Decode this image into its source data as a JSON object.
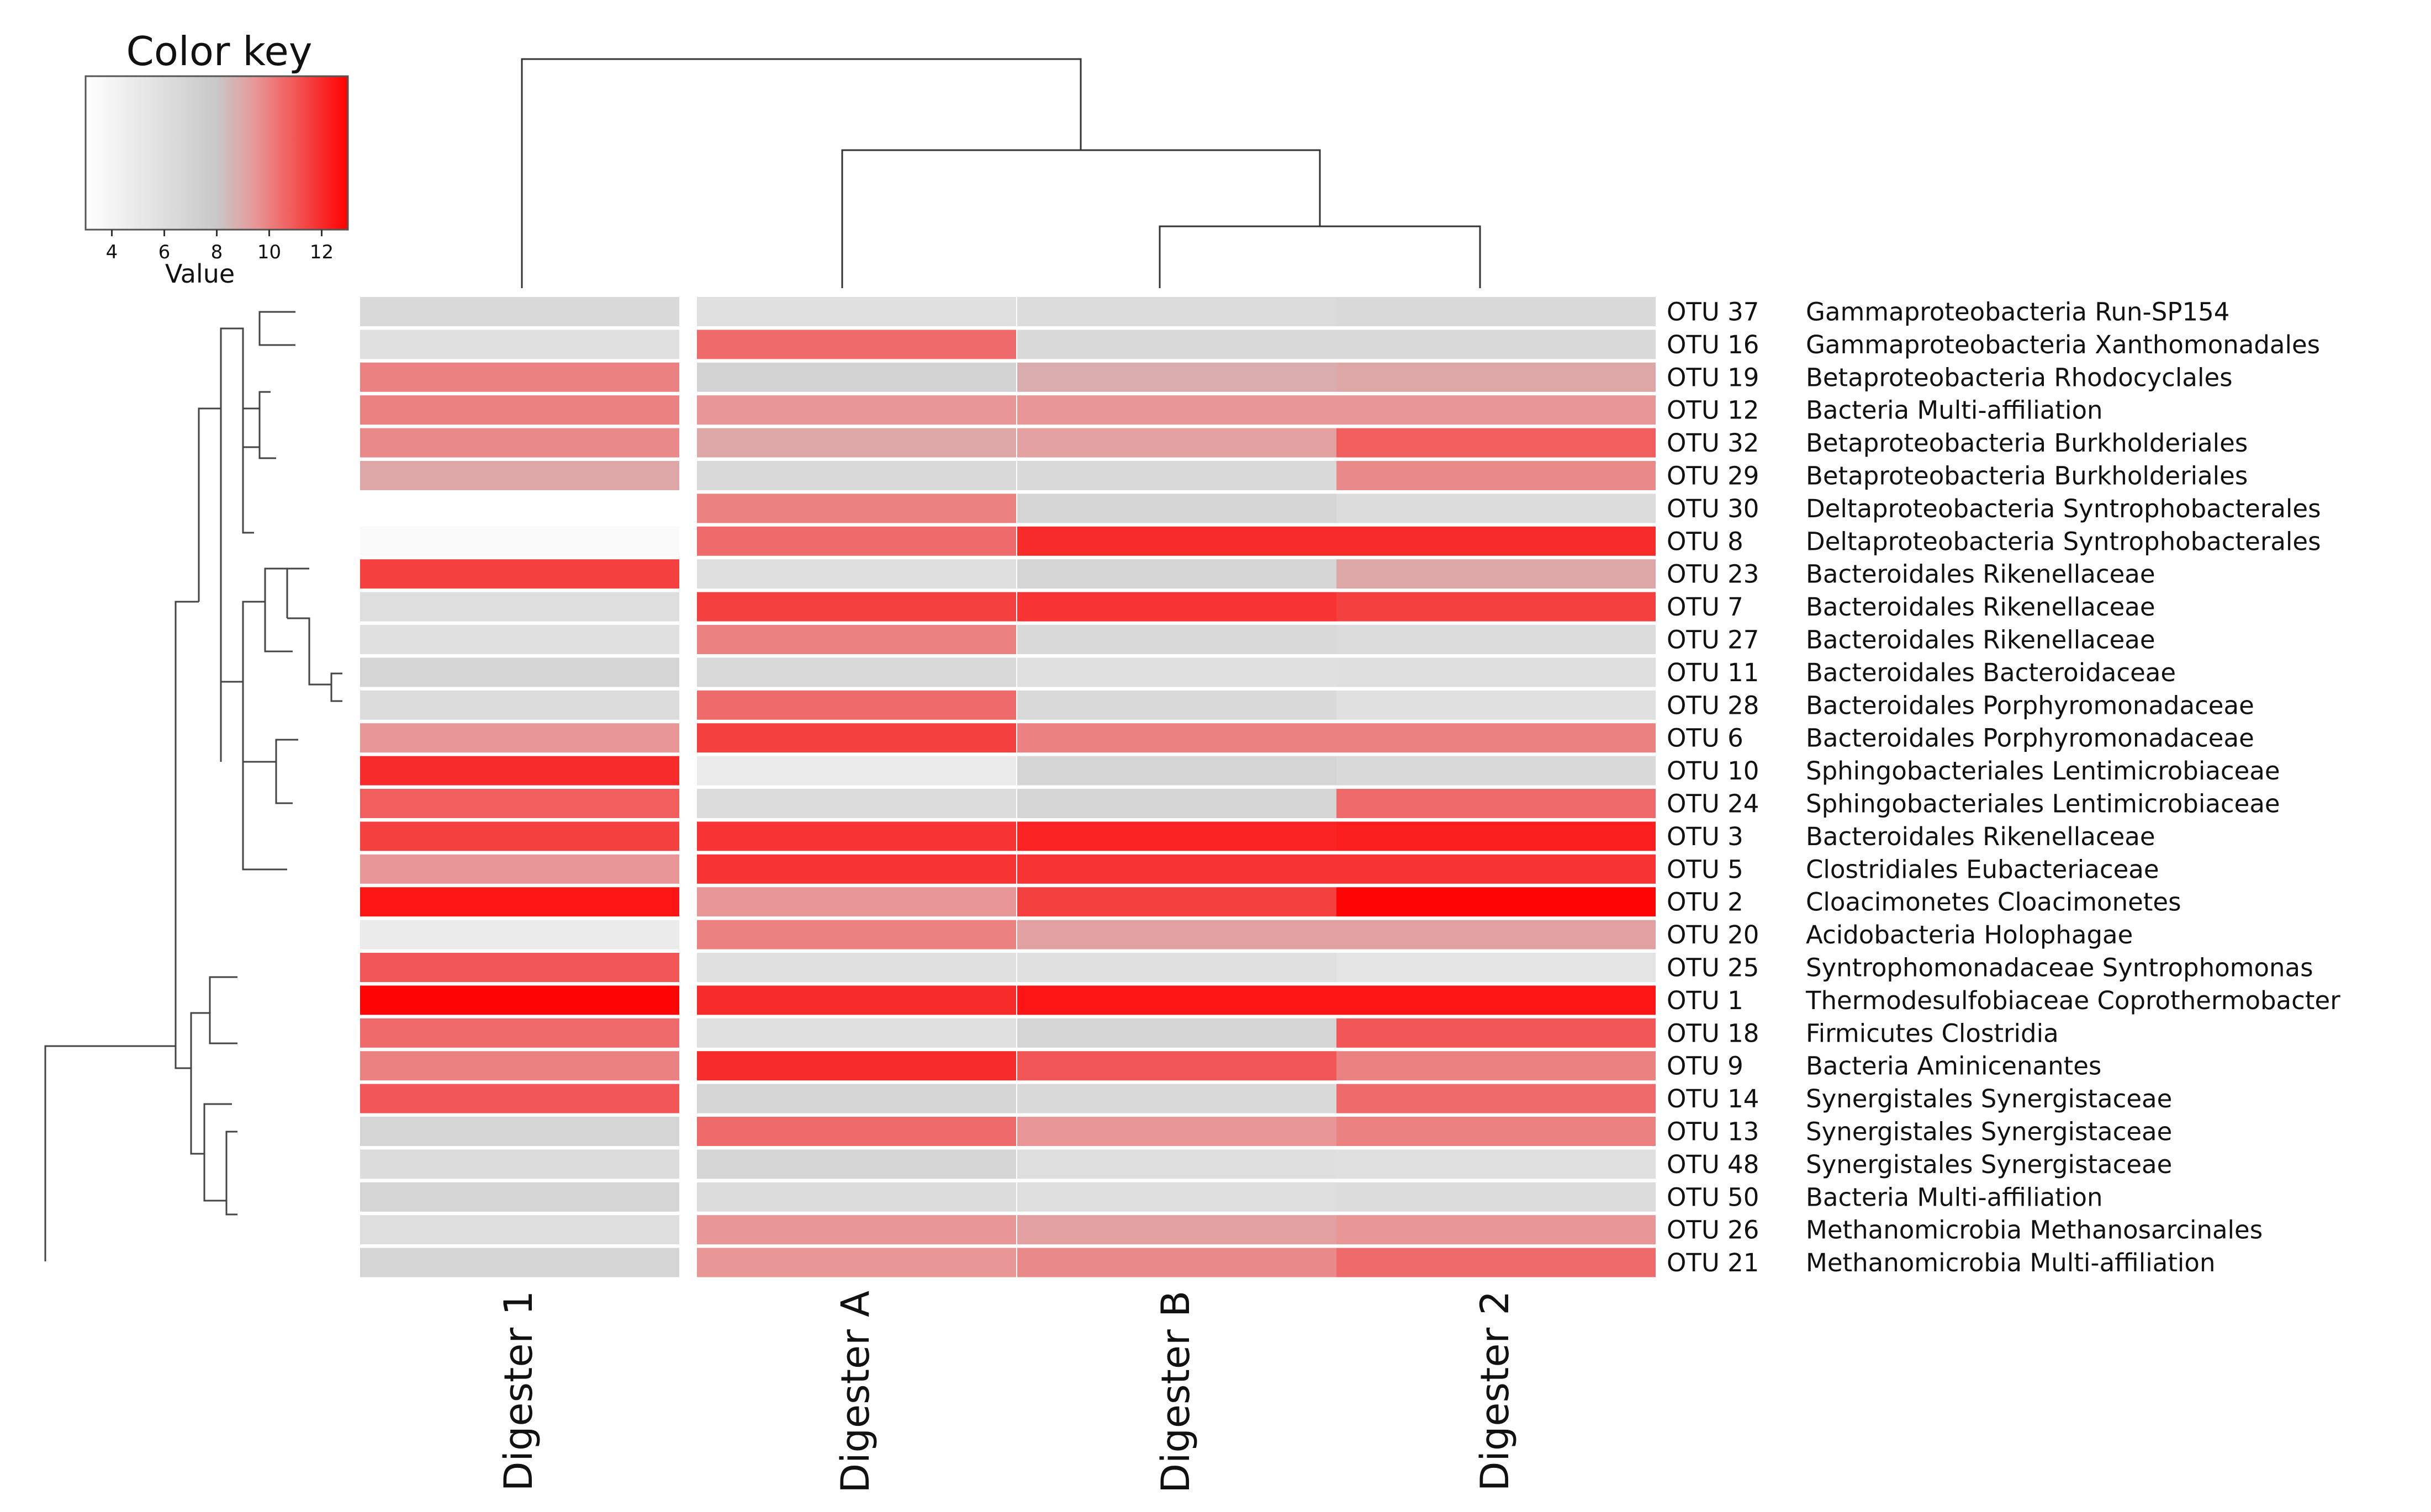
{
  "chart_data": {
    "type": "heatmap",
    "title": "",
    "columns": [
      "Digester 1",
      "Digester A",
      "Digester B",
      "Digester 2"
    ],
    "rows": [
      {
        "otu": "OTU 37",
        "taxon": "Gammaproteobacteria Run-SP154",
        "values": [
          6.5,
          5.8,
          6.2,
          6.5
        ]
      },
      {
        "otu": "OTU 16",
        "taxon": "Gammaproteobacteria Xanthomonadales",
        "values": [
          5.8,
          10.5,
          6.5,
          6.5
        ]
      },
      {
        "otu": "OTU 19",
        "taxon": "Betaproteobacteria Rhodocyclales",
        "values": [
          10.0,
          7.0,
          8.8,
          9.0
        ]
      },
      {
        "otu": "OTU 12",
        "taxon": "Bacteria Multi-affiliation",
        "values": [
          10.0,
          9.5,
          9.5,
          9.5
        ]
      },
      {
        "otu": "OTU 32",
        "taxon": "Betaproteobacteria Burkholderiales",
        "values": [
          9.8,
          9.0,
          9.2,
          10.8
        ]
      },
      {
        "otu": "OTU 29",
        "taxon": "Betaproteobacteria Burkholderiales",
        "values": [
          9.0,
          6.5,
          6.5,
          9.8
        ]
      },
      {
        "otu": "OTU 30",
        "taxon": "Deltaproteobacteria Syntrophobacterales",
        "values": [
          null,
          10.0,
          6.8,
          6.2
        ]
      },
      {
        "otu": "OTU 8",
        "taxon": "Deltaproteobacteria Syntrophobacterales",
        "values": [
          3.5,
          10.5,
          12.0,
          12.0
        ]
      },
      {
        "otu": "OTU 23",
        "taxon": "Bacteroidales Rikenellaceae",
        "values": [
          11.5,
          6.0,
          6.8,
          9.0
        ]
      },
      {
        "otu": "OTU 7",
        "taxon": "Bacteroidales Rikenellaceae",
        "values": [
          6.0,
          11.5,
          11.8,
          11.5
        ]
      },
      {
        "otu": "OTU 27",
        "taxon": "Bacteroidales Rikenellaceae",
        "values": [
          5.8,
          10.0,
          6.5,
          6.2
        ]
      },
      {
        "otu": "OTU 11",
        "taxon": "Bacteroidales Bacteroidaceae",
        "values": [
          6.8,
          6.5,
          5.8,
          6.0
        ]
      },
      {
        "otu": "OTU 28",
        "taxon": "Bacteroidales Porphyromonadaceae",
        "values": [
          6.2,
          10.5,
          6.5,
          5.8
        ]
      },
      {
        "otu": "OTU 6",
        "taxon": "Bacteroidales Porphyromonadaceae",
        "values": [
          9.5,
          11.5,
          10.0,
          10.0
        ]
      },
      {
        "otu": "OTU 10",
        "taxon": "Sphingobacteriales Lentimicrobiaceae",
        "values": [
          12.0,
          4.8,
          6.8,
          6.5
        ]
      },
      {
        "otu": "OTU 24",
        "taxon": "Sphingobacteriales Lentimicrobiaceae",
        "values": [
          10.8,
          6.2,
          6.8,
          10.5
        ]
      },
      {
        "otu": "OTU 3",
        "taxon": "Bacteroidales Rikenellaceae",
        "values": [
          11.5,
          11.8,
          12.2,
          12.3
        ]
      },
      {
        "otu": "OTU 5",
        "taxon": "Clostridiales Eubacteriaceae",
        "values": [
          9.5,
          11.8,
          11.8,
          11.8
        ]
      },
      {
        "otu": "OTU 2",
        "taxon": "Cloacimonetes Cloacimonetes",
        "values": [
          12.5,
          9.5,
          11.5,
          12.9
        ]
      },
      {
        "otu": "OTU 20",
        "taxon": "Acidobacteria Holophagae",
        "values": [
          4.8,
          10.0,
          9.2,
          9.2
        ]
      },
      {
        "otu": "OTU 25",
        "taxon": "Syntrophomonadaceae Syntrophomonas",
        "values": [
          11.0,
          5.8,
          5.8,
          5.5
        ]
      },
      {
        "otu": "OTU 1",
        "taxon": "Thermodesulfobiaceae Coprothermobacter",
        "values": [
          12.9,
          12.0,
          12.5,
          12.5
        ]
      },
      {
        "otu": "OTU 18",
        "taxon": "Firmicutes Clostridia",
        "values": [
          10.5,
          5.8,
          6.8,
          11.0
        ]
      },
      {
        "otu": "OTU 9",
        "taxon": "Bacteria Aminicenantes",
        "values": [
          10.0,
          12.0,
          11.0,
          10.0
        ]
      },
      {
        "otu": "OTU 14",
        "taxon": "Synergistales Synergistaceae",
        "values": [
          11.0,
          6.8,
          6.5,
          10.5
        ]
      },
      {
        "otu": "OTU 13",
        "taxon": "Synergistales Synergistaceae",
        "values": [
          6.8,
          10.5,
          9.5,
          10.0
        ]
      },
      {
        "otu": "OTU 48",
        "taxon": "Synergistales Synergistaceae",
        "values": [
          6.2,
          6.8,
          6.0,
          5.8
        ]
      },
      {
        "otu": "OTU 50",
        "taxon": "Bacteria Multi-affiliation",
        "values": [
          6.8,
          6.2,
          6.0,
          6.2
        ]
      },
      {
        "otu": "OTU 26",
        "taxon": "Methanomicrobia Methanosarcinales",
        "values": [
          6.0,
          9.5,
          9.2,
          9.5
        ]
      },
      {
        "otu": "OTU 21",
        "taxon": "Methanomicrobia Multi-affiliation",
        "values": [
          6.8,
          9.5,
          9.8,
          10.5
        ]
      }
    ],
    "color_key": {
      "title": "Color key",
      "label": "Value",
      "ticks": [
        4,
        6,
        8,
        10,
        12
      ],
      "range": [
        3,
        13
      ],
      "low_color": "#ffffff",
      "mid_color": "#c8c8c8",
      "high_color": "#ff0000",
      "midpoint": 8
    },
    "dendrogram": {
      "columns": "(Digester 1,(Digester A,(Digester B,Digester 2)))",
      "rows": "hierarchical clustering of OTUs"
    }
  }
}
